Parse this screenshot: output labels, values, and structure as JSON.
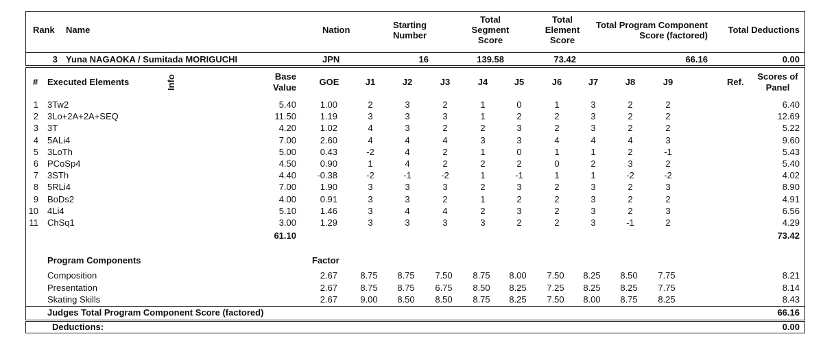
{
  "header": {
    "rank_label": "Rank",
    "name_label": "Name",
    "nation_label": "Nation",
    "starting_number_label": [
      "Starting",
      "Number"
    ],
    "total_segment_label": [
      "Total",
      "Segment",
      "Score"
    ],
    "total_element_label": [
      "Total",
      "Element",
      "Score"
    ],
    "tpcs_label": [
      "Total Program Component",
      "Score (factored)"
    ],
    "total_deductions_label": "Total Deductions"
  },
  "skater": {
    "rank": "3",
    "name": "Yuna NAGAOKA / Sumitada MORIGUCHI",
    "nation": "JPN",
    "starting_number": "16",
    "total_segment_score": "139.58",
    "total_element_score": "73.42",
    "tpcs": "66.16",
    "total_deductions": "0.00"
  },
  "elements_header": {
    "num": "#",
    "executed_elements": "Executed Elements",
    "info": "Info",
    "base_value": [
      "Base",
      "Value"
    ],
    "goe": "GOE",
    "judges": [
      "J1",
      "J2",
      "J3",
      "J4",
      "J5",
      "J6",
      "J7",
      "J8",
      "J9"
    ],
    "ref": "Ref.",
    "scores_of_panel": [
      "Scores of",
      "Panel"
    ]
  },
  "elements": [
    {
      "num": "1",
      "name": "3Tw2",
      "bv": "5.40",
      "goe": "1.00",
      "j": [
        "2",
        "3",
        "2",
        "1",
        "0",
        "1",
        "3",
        "2",
        "2"
      ],
      "score": "6.40"
    },
    {
      "num": "2",
      "name": "3Lo+2A+2A+SEQ",
      "bv": "11.50",
      "goe": "1.19",
      "j": [
        "3",
        "3",
        "3",
        "1",
        "2",
        "2",
        "3",
        "2",
        "2"
      ],
      "score": "12.69"
    },
    {
      "num": "3",
      "name": "3T",
      "bv": "4.20",
      "goe": "1.02",
      "j": [
        "4",
        "3",
        "2",
        "2",
        "3",
        "2",
        "3",
        "2",
        "2"
      ],
      "score": "5.22"
    },
    {
      "num": "4",
      "name": "5ALi4",
      "bv": "7.00",
      "goe": "2.60",
      "j": [
        "4",
        "4",
        "4",
        "3",
        "3",
        "4",
        "4",
        "4",
        "3"
      ],
      "score": "9.60"
    },
    {
      "num": "5",
      "name": "3LoTh",
      "bv": "5.00",
      "goe": "0.43",
      "j": [
        "-2",
        "4",
        "2",
        "1",
        "0",
        "1",
        "1",
        "2",
        "-1"
      ],
      "score": "5.43"
    },
    {
      "num": "6",
      "name": "PCoSp4",
      "bv": "4.50",
      "goe": "0.90",
      "j": [
        "1",
        "4",
        "2",
        "2",
        "2",
        "0",
        "2",
        "3",
        "2"
      ],
      "score": "5.40"
    },
    {
      "num": "7",
      "name": "3STh",
      "bv": "4.40",
      "goe": "-0.38",
      "j": [
        "-2",
        "-1",
        "-2",
        "1",
        "-1",
        "1",
        "1",
        "-2",
        "-2"
      ],
      "score": "4.02"
    },
    {
      "num": "8",
      "name": "5RLi4",
      "bv": "7.00",
      "goe": "1.90",
      "j": [
        "3",
        "3",
        "3",
        "2",
        "3",
        "2",
        "3",
        "2",
        "3"
      ],
      "score": "8.90"
    },
    {
      "num": "9",
      "name": "BoDs2",
      "bv": "4.00",
      "goe": "0.91",
      "j": [
        "3",
        "3",
        "2",
        "1",
        "2",
        "2",
        "3",
        "2",
        "2"
      ],
      "score": "4.91"
    },
    {
      "num": "10",
      "name": "4Li4",
      "bv": "5.10",
      "goe": "1.46",
      "j": [
        "3",
        "4",
        "4",
        "2",
        "3",
        "2",
        "3",
        "2",
        "3"
      ],
      "score": "6.56"
    },
    {
      "num": "11",
      "name": "ChSq1",
      "bv": "3.00",
      "goe": "1.29",
      "j": [
        "3",
        "3",
        "3",
        "3",
        "2",
        "2",
        "3",
        "-1",
        "2"
      ],
      "score": "4.29"
    }
  ],
  "elements_total_bv": "61.10",
  "elements_total_score": "73.42",
  "components_header": {
    "label": "Program Components",
    "factor": "Factor"
  },
  "components": [
    {
      "name": "Composition",
      "factor": "2.67",
      "j": [
        "8.75",
        "8.75",
        "7.50",
        "8.75",
        "8.00",
        "7.50",
        "8.25",
        "8.50",
        "7.75"
      ],
      "score": "8.21"
    },
    {
      "name": "Presentation",
      "factor": "2.67",
      "j": [
        "8.75",
        "8.75",
        "6.75",
        "8.50",
        "8.25",
        "7.25",
        "8.25",
        "8.25",
        "7.75"
      ],
      "score": "8.14"
    },
    {
      "name": "Skating Skills",
      "factor": "2.67",
      "j": [
        "9.00",
        "8.50",
        "8.50",
        "8.75",
        "8.25",
        "7.50",
        "8.00",
        "8.75",
        "8.25"
      ],
      "score": "8.43"
    }
  ],
  "judges_total_label": "Judges Total Program Component Score (factored)",
  "judges_total_value": "66.16",
  "deductions_label": "Deductions:",
  "deductions_value": "0.00"
}
